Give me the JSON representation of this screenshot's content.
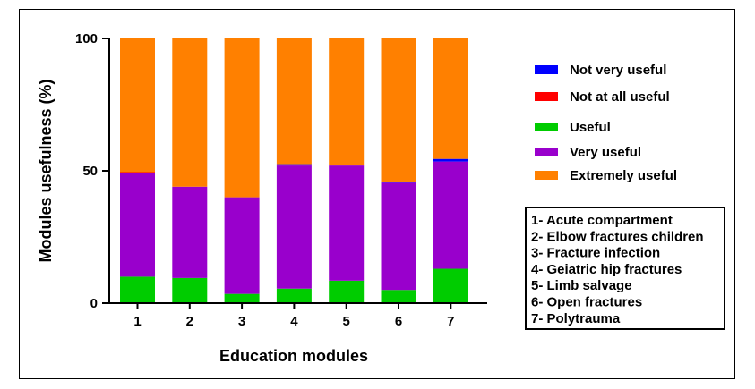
{
  "chart_data": {
    "type": "bar",
    "stacked": true,
    "categories": [
      "1",
      "2",
      "3",
      "4",
      "5",
      "6",
      "7"
    ],
    "series": [
      {
        "name": "Useful",
        "color": "#00cc00",
        "values": [
          10,
          9.5,
          3.5,
          5.5,
          8.5,
          5,
          13
        ]
      },
      {
        "name": "Very useful",
        "color": "#9900cc",
        "values": [
          39,
          34.5,
          36.5,
          46.5,
          43.5,
          40.5,
          40.5
        ]
      },
      {
        "name": "Not at all useful",
        "color": "#ff0000",
        "values": [
          0.5,
          0,
          0,
          0,
          0,
          0,
          0
        ]
      },
      {
        "name": "Not very useful",
        "color": "#0000ff",
        "values": [
          0,
          0,
          0,
          0.5,
          0,
          0.3,
          1
        ]
      },
      {
        "name": "Extremely useful",
        "color": "#ff8000",
        "values": [
          50.5,
          56,
          60,
          47.5,
          48,
          54.2,
          45.5
        ]
      }
    ],
    "legend": [
      "Not very useful",
      "Not at all useful",
      "Useful",
      "Very useful",
      "Extremely useful"
    ],
    "xlabel": "Education modules",
    "ylabel": "Modules usefulness (%)",
    "ylim": [
      0,
      100
    ],
    "yticks": [
      "0",
      "50",
      "100"
    ],
    "key": [
      "1- Acute compartment",
      "2- Elbow fractures children",
      "3- Fracture infection",
      "4- Geiatric hip fractures",
      "5- Limb salvage",
      "6- Open fractures",
      "7- Polytrauma"
    ]
  }
}
